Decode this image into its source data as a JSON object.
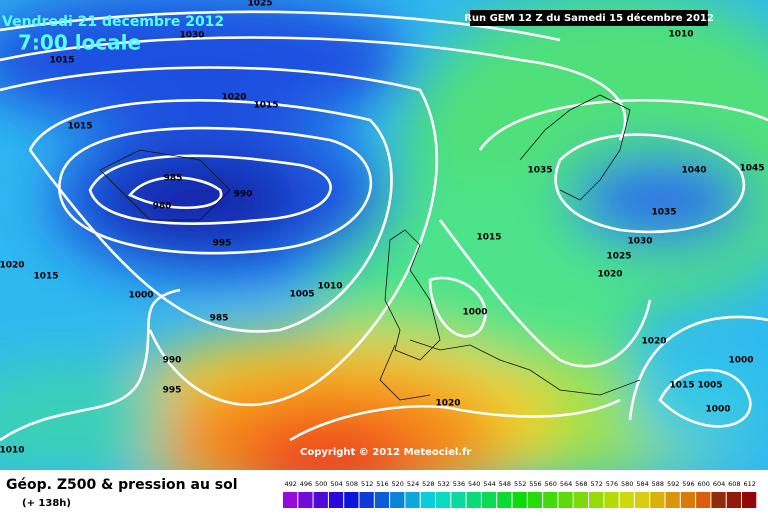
{
  "header": {
    "title": "Vendredi 21 decembre 2012",
    "time": "7:00 locale",
    "run": "Run GEM 12 Z du Samedi 15 décembre 2012"
  },
  "map": {
    "isobar_labels": [
      1025,
      1030,
      1015,
      1020,
      1015,
      1015,
      985,
      990,
      980,
      995,
      1020,
      1015,
      1000,
      1005,
      1010,
      985,
      1000,
      1015,
      1035,
      1040,
      1045,
      1035,
      1030,
      1025,
      1020,
      990,
      995,
      1020,
      1020,
      1000,
      1015,
      1005,
      1000,
      1010,
      1010
    ],
    "copyright": "Copyright © 2012 Meteociel.fr"
  },
  "footer": {
    "title": "Géop. Z500 & pression au sol",
    "subtitle": "(+ 138h)",
    "scale": [
      492,
      496,
      500,
      504,
      508,
      512,
      516,
      520,
      524,
      528,
      532,
      536,
      540,
      544,
      548,
      552,
      556,
      560,
      564,
      568,
      572,
      576,
      580,
      584,
      588,
      592,
      596,
      600,
      604,
      608,
      612
    ]
  }
}
